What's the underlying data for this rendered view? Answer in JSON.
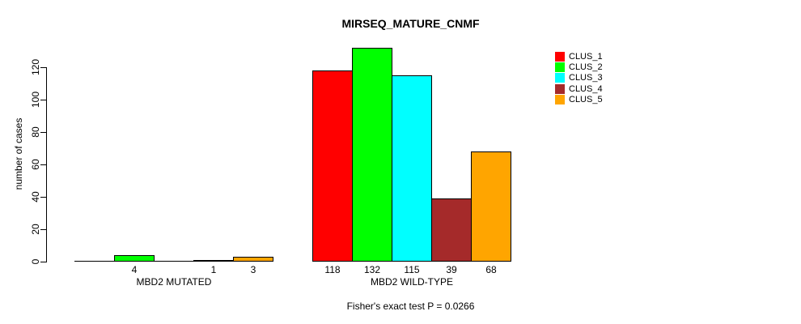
{
  "title": "MIRSEQ_MATURE_CNMF",
  "y_axis_label": "number of cases",
  "footer": "Fisher's exact test P = 0.0266",
  "chart_data": {
    "type": "bar",
    "title": "MIRSEQ_MATURE_CNMF",
    "xlabel": "",
    "ylabel": "number of cases",
    "categories": [
      "MBD2 MUTATED",
      "MBD2 WILD-TYPE"
    ],
    "series": [
      {
        "name": "CLUS_1",
        "color": "#ff0000",
        "values": [
          0,
          118
        ]
      },
      {
        "name": "CLUS_2",
        "color": "#00ff00",
        "values": [
          4,
          132
        ]
      },
      {
        "name": "CLUS_3",
        "color": "#00ffff",
        "values": [
          0,
          115
        ]
      },
      {
        "name": "CLUS_4",
        "color": "#a52a2a",
        "values": [
          1,
          39
        ]
      },
      {
        "name": "CLUS_5",
        "color": "#ffa500",
        "values": [
          3,
          68
        ]
      }
    ],
    "bar_value_labels": {
      "MBD2 MUTATED": [
        "",
        "4",
        "",
        "1",
        "3"
      ],
      "MBD2 WILD-TYPE": [
        "118",
        "132",
        "115",
        "39",
        "68"
      ]
    },
    "y_ticks": [
      0,
      20,
      40,
      60,
      80,
      100,
      120
    ],
    "ylim": [
      0,
      135
    ],
    "grid": false,
    "legend_position": "top-right",
    "legend_entries": [
      "CLUS_1",
      "CLUS_2",
      "CLUS_3",
      "CLUS_4",
      "CLUS_5"
    ],
    "annotation": "Fisher's exact test P = 0.0266",
    "bar_border_color": "#000000",
    "background_color": "#ffffff"
  }
}
